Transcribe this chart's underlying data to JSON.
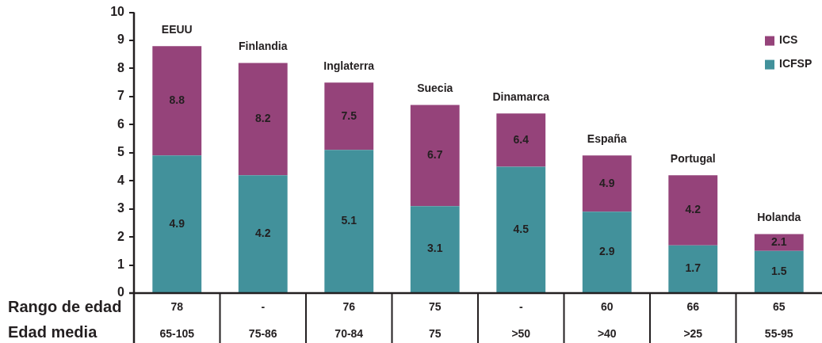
{
  "chart_data": {
    "type": "bar",
    "stacked": true,
    "categories": [
      "EEUU",
      "Finlandia",
      "Inglaterra",
      "Suecia",
      "Dinamarca",
      "España",
      "Portugal",
      "Holanda"
    ],
    "series": [
      {
        "name": "ICFSP",
        "color": "#42919b",
        "values": [
          4.9,
          4.2,
          5.1,
          3.1,
          4.5,
          2.9,
          1.7,
          1.5
        ],
        "value_labels": [
          "4.9",
          "4.2",
          "5.1",
          "3.1",
          "4.5",
          "2.9",
          "1.7",
          "1.5"
        ]
      },
      {
        "name": "ICS",
        "color": "#95437a",
        "values": [
          3.9,
          4.0,
          2.4,
          3.6,
          1.9,
          2.0,
          2.5,
          0.6
        ]
      }
    ],
    "totals": [
      "8.8",
      "8.2",
      "7.5",
      "6.7",
      "6.4",
      "4.9",
      "4.2",
      "2.1"
    ],
    "ylim": [
      0,
      10
    ],
    "yticks": [
      0,
      1,
      2,
      3,
      4,
      5,
      6,
      7,
      8,
      9,
      10
    ],
    "legend": "top right",
    "annotations": [
      "Rango de edad",
      "78",
      "-",
      "76",
      "75",
      "-",
      "60",
      "66",
      "65",
      "Edad media",
      "65-105",
      "75-86",
      "70-84",
      "75",
      ">50",
      ">40",
      ">25",
      "55-95"
    ]
  }
}
